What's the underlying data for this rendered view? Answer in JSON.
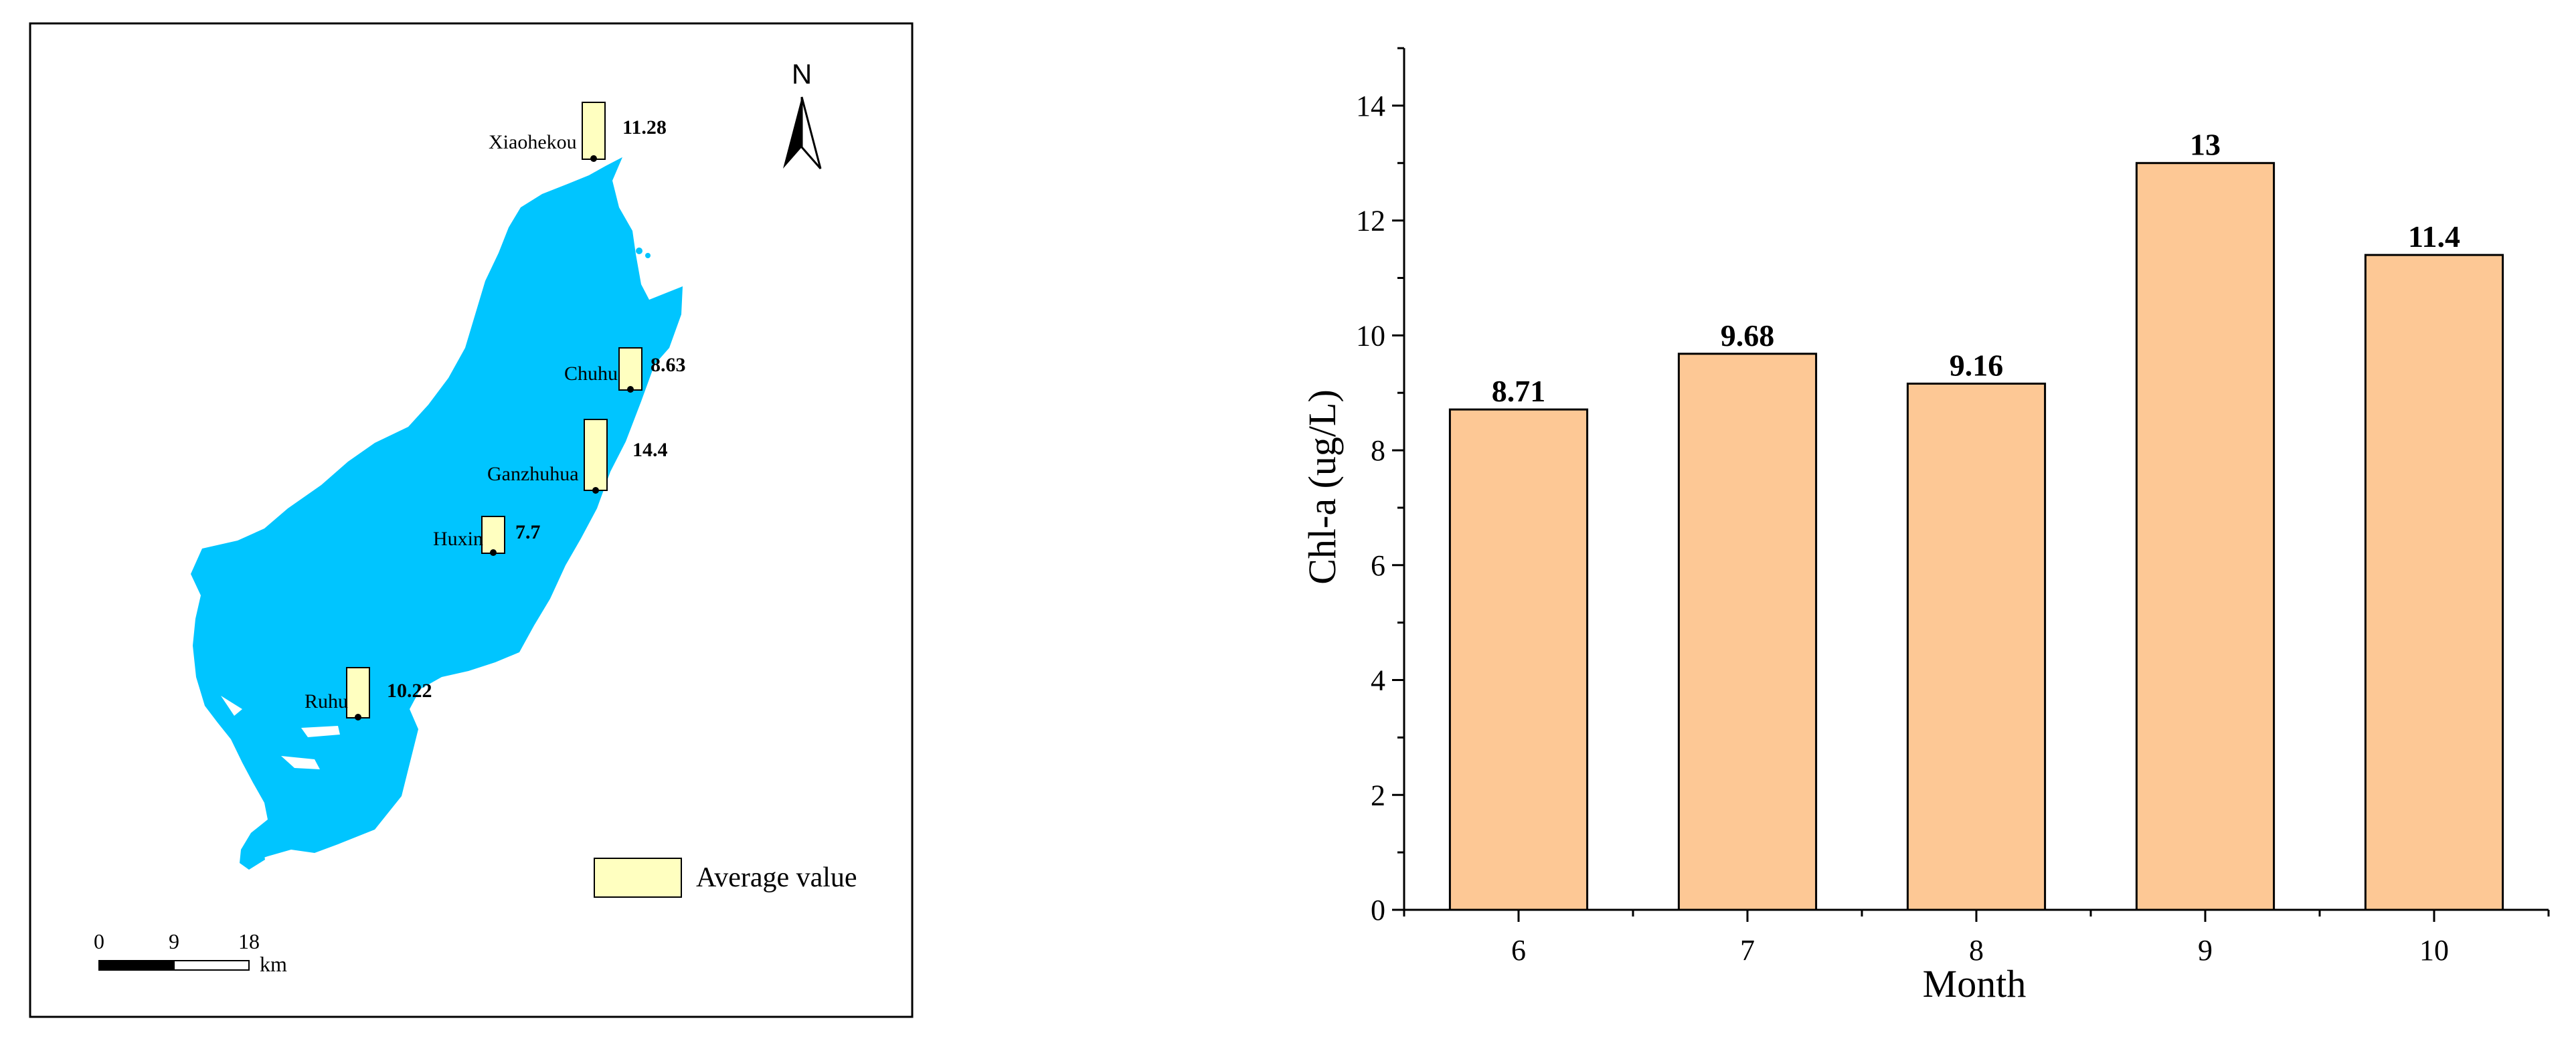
{
  "map": {
    "north_label": "N",
    "legend_label": "Average value",
    "scale_ticks": [
      "0",
      "9",
      "18"
    ],
    "scale_unit": "km",
    "stations": [
      {
        "name": "Xiaohekou",
        "value": "11.28"
      },
      {
        "name": "Chuhu",
        "value": "8.63"
      },
      {
        "name": "Ganzhuhua",
        "value": "14.4"
      },
      {
        "name": "Huxin",
        "value": "7.7"
      },
      {
        "name": "Ruhu",
        "value": "10.22"
      }
    ]
  },
  "chart_data": {
    "type": "bar",
    "title": "",
    "xlabel": "Month",
    "ylabel": "Chl-a (ug/L)",
    "categories": [
      "6",
      "7",
      "8",
      "9",
      "10"
    ],
    "values": [
      8.71,
      9.68,
      9.16,
      13,
      11.4
    ],
    "value_labels": [
      "8.71",
      "9.68",
      "9.16",
      "13",
      "11.4"
    ],
    "ylim": [
      0,
      15
    ],
    "y_ticks": [
      "0",
      "2",
      "4",
      "6",
      "8",
      "10",
      "12",
      "14"
    ],
    "bar_color": "#FDC895",
    "grid": false,
    "legend": "none"
  }
}
